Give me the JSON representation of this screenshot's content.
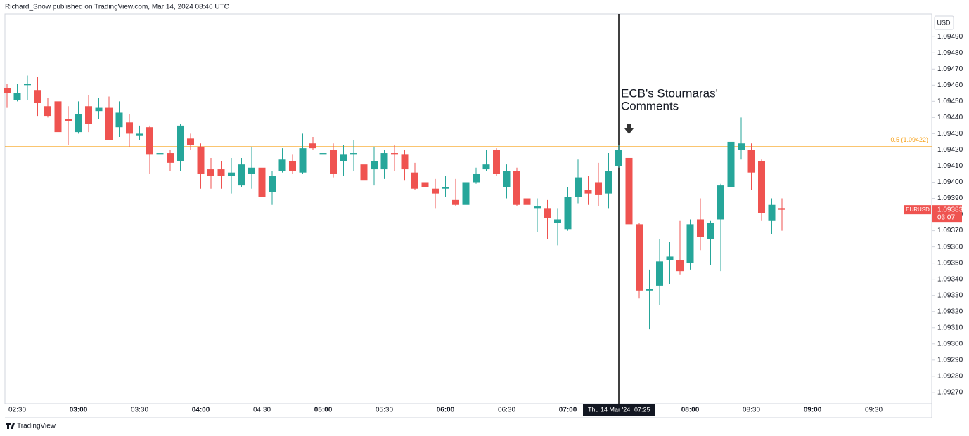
{
  "header": "Richard_Snow published on TradingView.com, Mar 14, 2024 08:46 UTC",
  "footer": "TradingView",
  "chart_data": {
    "type": "candlestick",
    "currency": "USD",
    "symbol": "EURUSD",
    "countdown": "03:07",
    "up_color": "#26a69a",
    "down_color": "#ef5350",
    "x": [
      "02:25",
      "02:30",
      "02:35",
      "02:40",
      "02:45",
      "02:50",
      "02:55",
      "03:00",
      "03:05",
      "03:10",
      "03:15",
      "03:20",
      "03:25",
      "03:30",
      "03:35",
      "03:40",
      "03:45",
      "03:50",
      "03:55",
      "04:00",
      "04:05",
      "04:10",
      "04:15",
      "04:20",
      "04:25",
      "04:30",
      "04:35",
      "04:40",
      "04:45",
      "04:50",
      "04:55",
      "05:00",
      "05:05",
      "05:10",
      "05:15",
      "05:20",
      "05:25",
      "05:30",
      "05:35",
      "05:40",
      "05:45",
      "05:50",
      "05:55",
      "06:00",
      "06:05",
      "06:10",
      "06:15",
      "06:20",
      "06:25",
      "06:30",
      "06:35",
      "06:40",
      "06:45",
      "06:50",
      "06:55",
      "07:00",
      "07:05",
      "07:10",
      "07:15",
      "07:20",
      "07:25",
      "07:30",
      "07:35",
      "07:40",
      "07:45",
      "07:50",
      "07:55",
      "08:00",
      "08:05",
      "08:10",
      "08:15",
      "08:20",
      "08:25",
      "08:30",
      "08:35",
      "08:40",
      "08:45"
    ],
    "open": [
      1.09458,
      1.09451,
      1.0946,
      1.09457,
      1.09447,
      1.0945,
      1.09439,
      1.09431,
      1.09447,
      1.09444,
      1.09446,
      1.09434,
      1.09437,
      1.09429,
      1.09434,
      1.09417,
      1.09418,
      1.09413,
      1.09427,
      1.09422,
      1.09408,
      1.09408,
      1.09404,
      1.09398,
      1.09405,
      1.09409,
      1.09394,
      1.09407,
      1.09413,
      1.09406,
      1.09424,
      1.09417,
      1.0942,
      1.09413,
      1.09417,
      1.09411,
      1.09408,
      1.09408,
      1.09418,
      1.09417,
      1.09406,
      1.094,
      1.09396,
      1.09396,
      1.09389,
      1.09386,
      1.094,
      1.09408,
      1.0942,
      1.09397,
      1.09407,
      1.0939,
      1.09384,
      1.09384,
      1.09375,
      1.09371,
      1.09391,
      1.09395,
      1.094,
      1.09393,
      1.0941,
      1.09415,
      1.09374,
      1.09333,
      1.09336,
      1.09352,
      1.09352,
      1.0935,
      1.09377,
      1.09365,
      1.09377,
      1.09397,
      1.0942,
      1.0942,
      1.09413,
      1.09376,
      1.09384
    ],
    "high": [
      1.09461,
      1.09461,
      1.09466,
      1.09465,
      1.09452,
      1.09453,
      1.09447,
      1.0945,
      1.09454,
      1.09452,
      1.09453,
      1.0945,
      1.09442,
      1.09435,
      1.09435,
      1.09424,
      1.0942,
      1.09436,
      1.0943,
      1.09424,
      1.09415,
      1.09413,
      1.09415,
      1.09415,
      1.09422,
      1.09411,
      1.09407,
      1.09421,
      1.09417,
      1.0943,
      1.09428,
      1.09431,
      1.09424,
      1.09423,
      1.09426,
      1.09423,
      1.09422,
      1.0942,
      1.09423,
      1.0942,
      1.09412,
      1.09411,
      1.09402,
      1.09404,
      1.09402,
      1.09407,
      1.09409,
      1.0942,
      1.09421,
      1.09411,
      1.09409,
      1.09396,
      1.0939,
      1.09389,
      1.09384,
      1.09397,
      1.09414,
      1.09404,
      1.09412,
      1.09418,
      1.09423,
      1.09421,
      1.09375,
      1.09346,
      1.09365,
      1.09363,
      1.09376,
      1.09377,
      1.0939,
      1.09376,
      1.09399,
      1.09433,
      1.0944,
      1.09424,
      1.09414,
      1.0939,
      1.0939
    ],
    "low": [
      1.09446,
      1.0945,
      1.09451,
      1.09441,
      1.0944,
      1.0943,
      1.09423,
      1.0943,
      1.09431,
      1.09439,
      1.09426,
      1.09428,
      1.09422,
      1.09426,
      1.09405,
      1.09414,
      1.09407,
      1.09407,
      1.0942,
      1.09396,
      1.09396,
      1.09396,
      1.09393,
      1.09397,
      1.09396,
      1.09381,
      1.09386,
      1.09406,
      1.09405,
      1.09405,
      1.0942,
      1.09411,
      1.09403,
      1.09404,
      1.09407,
      1.09398,
      1.09398,
      1.09402,
      1.09407,
      1.09401,
      1.09395,
      1.09385,
      1.09384,
      1.09391,
      1.09385,
      1.09385,
      1.09399,
      1.09407,
      1.09404,
      1.0939,
      1.09385,
      1.09377,
      1.09369,
      1.09365,
      1.09361,
      1.0937,
      1.09387,
      1.09386,
      1.09385,
      1.09384,
      1.09409,
      1.09328,
      1.09328,
      1.09309,
      1.09324,
      1.09337,
      1.09343,
      1.09346,
      1.09358,
      1.09349,
      1.09345,
      1.09396,
      1.09414,
      1.09395,
      1.09376,
      1.09368,
      1.0937
    ],
    "close": [
      1.09455,
      1.09455,
      1.09461,
      1.09449,
      1.09441,
      1.09431,
      1.09438,
      1.09442,
      1.09436,
      1.09446,
      1.09426,
      1.09443,
      1.0943,
      1.0943,
      1.09417,
      1.09418,
      1.09412,
      1.09435,
      1.09423,
      1.09405,
      1.09404,
      1.09404,
      1.09406,
      1.09411,
      1.09409,
      1.09391,
      1.09404,
      1.09414,
      1.09407,
      1.09421,
      1.09421,
      1.09418,
      1.09405,
      1.09417,
      1.09418,
      1.09401,
      1.09413,
      1.09418,
      1.09417,
      1.09408,
      1.09396,
      1.09397,
      1.09393,
      1.09397,
      1.09386,
      1.094,
      1.09405,
      1.09411,
      1.09405,
      1.09407,
      1.09386,
      1.09386,
      1.09385,
      1.09378,
      1.09377,
      1.09391,
      1.09403,
      1.09393,
      1.09392,
      1.09407,
      1.0942,
      1.09374,
      1.09333,
      1.09334,
      1.09351,
      1.09354,
      1.09345,
      1.09374,
      1.09366,
      1.09375,
      1.09398,
      1.09425,
      1.09424,
      1.09406,
      1.09381,
      1.09386,
      1.09383
    ],
    "ylim": [
      1.09263,
      1.09504
    ],
    "yticks": [
      {
        "value": 1.0949,
        "label": "1.09490"
      },
      {
        "value": 1.0948,
        "label": "1.09480"
      },
      {
        "value": 1.0947,
        "label": "1.09470"
      },
      {
        "value": 1.0946,
        "label": "1.09460"
      },
      {
        "value": 1.0945,
        "label": "1.09450"
      },
      {
        "value": 1.0944,
        "label": "1.09440"
      },
      {
        "value": 1.0943,
        "label": "1.09430"
      },
      {
        "value": 1.0942,
        "label": "1.09420"
      },
      {
        "value": 1.0941,
        "label": "1.09410"
      },
      {
        "value": 1.094,
        "label": "1.09400"
      },
      {
        "value": 1.0939,
        "label": "1.09390"
      },
      {
        "value": 1.0938,
        "label": "1.09380"
      },
      {
        "value": 1.0937,
        "label": "1.09370"
      },
      {
        "value": 1.0936,
        "label": "1.09360"
      },
      {
        "value": 1.0935,
        "label": "1.09350"
      },
      {
        "value": 1.0934,
        "label": "1.09340"
      },
      {
        "value": 1.0933,
        "label": "1.09330"
      },
      {
        "value": 1.0932,
        "label": "1.09320"
      },
      {
        "value": 1.0931,
        "label": "1.09310"
      },
      {
        "value": 1.093,
        "label": "1.09300"
      },
      {
        "value": 1.0929,
        "label": "1.09290"
      },
      {
        "value": 1.0928,
        "label": "1.09280"
      },
      {
        "value": 1.0927,
        "label": "1.09270"
      }
    ],
    "xticks": [
      "02:30",
      "03:00",
      "03:30",
      "04:00",
      "04:30",
      "05:00",
      "05:30",
      "06:00",
      "06:30",
      "07:00",
      "08:00",
      "08:30",
      "09:00",
      "09:30"
    ],
    "fib_level": {
      "value": 1.09422,
      "label": "0.5 (1.09422)",
      "color": "#f7a21b"
    },
    "annotation": [
      "ECB's Stournaras'",
      "Comments"
    ],
    "crosshair": {
      "date": "Thu 14 Mar '24",
      "time": "07:25"
    }
  }
}
